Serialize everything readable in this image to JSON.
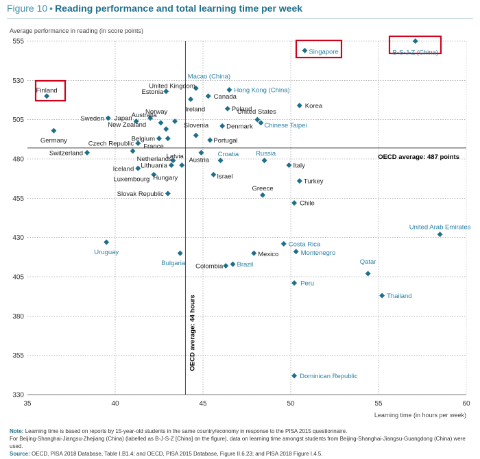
{
  "figure": {
    "label": "Figure 10",
    "title": "Reading performance and total learning time per week"
  },
  "notes": {
    "note_label": "Note:",
    "note_line1": "Learning time is based on reports by 15-year-old students in the same country/economy in response to the PISA 2015 questionnaire.",
    "note_line2": "For Beijing-Shanghai-Jiangsu-Zhejiang (China) (labelled as B-J-S-Z [China] on the figure), data on learning time amongst students from Beijing-Shanghai-Jiangsu-Guangdong (China) were used.",
    "source_label": "Source:",
    "source_text": "OECD, PISA 2018 Database, Table I.B1.4; and OECD, PISA 2015 Database, Figure II.6.23; and PISA 2018 Figure I.4.5."
  },
  "colors": {
    "marker": "#1f6f8b",
    "highlight_box": "#d0021b",
    "label_dark": "#222222",
    "label_blue": "#2a7fa3",
    "grid": "#555555"
  },
  "chart_data": {
    "type": "scatter",
    "title": "Reading performance and total learning time per week",
    "xlabel": "Learning time (in hours per week)",
    "ylabel": "Average performance in reading (in score points)",
    "xlim": [
      35,
      60
    ],
    "ylim": [
      330,
      555
    ],
    "x_ticks": [
      35,
      40,
      45,
      50,
      55,
      60
    ],
    "y_ticks": [
      330,
      355,
      380,
      405,
      430,
      455,
      480,
      505,
      530,
      555
    ],
    "grid": "dotted",
    "reference_lines": [
      {
        "axis": "y",
        "value": 487,
        "label": "OECD average: 487 points"
      },
      {
        "axis": "x",
        "value": 44,
        "label": "OECD average: 44 hours"
      }
    ],
    "points": [
      {
        "name": "Finland",
        "x": 36.1,
        "y": 520,
        "highlight": true,
        "color": "dark"
      },
      {
        "name": "Germany",
        "x": 36.5,
        "y": 498,
        "color": "dark"
      },
      {
        "name": "Sweden",
        "x": 39.6,
        "y": 506,
        "color": "dark"
      },
      {
        "name": "Switzerland",
        "x": 38.4,
        "y": 484,
        "color": "dark"
      },
      {
        "name": "Uruguay",
        "x": 39.5,
        "y": 427,
        "color": "blue"
      },
      {
        "name": "Netherlands",
        "x": 41,
        "y": 485,
        "color": "dark"
      },
      {
        "name": "Iceland",
        "x": 41.3,
        "y": 474,
        "color": "dark"
      },
      {
        "name": "Luxembourg",
        "x": 42.2,
        "y": 470,
        "color": "dark"
      },
      {
        "name": "Japan",
        "x": 41.2,
        "y": 504,
        "color": "dark"
      },
      {
        "name": "New Zealand",
        "x": 42,
        "y": 506,
        "color": "dark"
      },
      {
        "name": "Czech Republic",
        "x": 41.3,
        "y": 490,
        "color": "dark"
      },
      {
        "name": "Australia",
        "x": 42.6,
        "y": 503,
        "color": "dark"
      },
      {
        "name": "Belgium",
        "x": 42.5,
        "y": 493,
        "color": "dark"
      },
      {
        "name": "France",
        "x": 43,
        "y": 493,
        "color": "dark"
      },
      {
        "name": "Estonia",
        "x": 42.9,
        "y": 523,
        "color": "dark"
      },
      {
        "name": "Norway",
        "x": 42.9,
        "y": 499,
        "color": "dark"
      },
      {
        "name": "United Kingdom",
        "x": 43.4,
        "y": 504,
        "color": "dark"
      },
      {
        "name": "Latvia",
        "x": 43.3,
        "y": 479,
        "color": "dark"
      },
      {
        "name": "Lithuania",
        "x": 43.2,
        "y": 476,
        "color": "dark"
      },
      {
        "name": "Hungary",
        "x": 43.8,
        "y": 476,
        "color": "dark"
      },
      {
        "name": "Slovak Republic",
        "x": 43,
        "y": 458,
        "color": "dark"
      },
      {
        "name": "Bulgaria",
        "x": 43.7,
        "y": 420,
        "color": "blue"
      },
      {
        "name": "Macao (China)",
        "x": 44.6,
        "y": 525,
        "color": "blue"
      },
      {
        "name": "Ireland",
        "x": 44.3,
        "y": 518,
        "color": "dark"
      },
      {
        "name": "Canada",
        "x": 45.3,
        "y": 520,
        "color": "dark"
      },
      {
        "name": "Slovenia",
        "x": 44.6,
        "y": 495,
        "color": "dark"
      },
      {
        "name": "Austria",
        "x": 44.9,
        "y": 484,
        "color": "dark"
      },
      {
        "name": "Portugal",
        "x": 45.4,
        "y": 492,
        "color": "dark"
      },
      {
        "name": "Israel",
        "x": 45.6,
        "y": 470,
        "color": "dark"
      },
      {
        "name": "Croatia",
        "x": 46,
        "y": 479,
        "color": "blue"
      },
      {
        "name": "Denmark",
        "x": 46.1,
        "y": 501,
        "color": "dark"
      },
      {
        "name": "Poland",
        "x": 46.4,
        "y": 512,
        "color": "dark"
      },
      {
        "name": "Hong Kong (China)",
        "x": 46.5,
        "y": 524,
        "color": "blue"
      },
      {
        "name": "Colombia",
        "x": 46.3,
        "y": 412,
        "color": "dark"
      },
      {
        "name": "Brazil",
        "x": 46.7,
        "y": 413,
        "color": "blue"
      },
      {
        "name": "Mexico",
        "x": 47.9,
        "y": 420,
        "color": "dark"
      },
      {
        "name": "United States",
        "x": 48.1,
        "y": 505,
        "color": "dark"
      },
      {
        "name": "Chinese Taipei",
        "x": 48.3,
        "y": 503,
        "color": "blue"
      },
      {
        "name": "Russia",
        "x": 48.5,
        "y": 479,
        "color": "blue"
      },
      {
        "name": "Greece",
        "x": 48.4,
        "y": 457,
        "color": "dark"
      },
      {
        "name": "Costa Rica",
        "x": 49.6,
        "y": 426,
        "color": "blue"
      },
      {
        "name": "Italy",
        "x": 49.9,
        "y": 476,
        "color": "dark"
      },
      {
        "name": "Singapore",
        "x": 50.8,
        "y": 549,
        "highlight": true,
        "color": "blue"
      },
      {
        "name": "Korea",
        "x": 50.5,
        "y": 514,
        "color": "dark"
      },
      {
        "name": "Turkey",
        "x": 50.5,
        "y": 466,
        "color": "dark"
      },
      {
        "name": "Chile",
        "x": 50.2,
        "y": 452,
        "color": "dark"
      },
      {
        "name": "Montenegro",
        "x": 50.3,
        "y": 421,
        "color": "blue"
      },
      {
        "name": "Peru",
        "x": 50.2,
        "y": 401,
        "color": "blue"
      },
      {
        "name": "Dominican Republic",
        "x": 50.2,
        "y": 342,
        "color": "blue"
      },
      {
        "name": "Qatar",
        "x": 54.4,
        "y": 407,
        "color": "blue"
      },
      {
        "name": "Thailand",
        "x": 55.2,
        "y": 393,
        "color": "blue"
      },
      {
        "name": "United Arab Emirates",
        "x": 58.5,
        "y": 432,
        "color": "blue"
      },
      {
        "name": "B-S-J-Z (China)",
        "x": 57.1,
        "y": 555,
        "highlight": true,
        "color": "blue"
      }
    ]
  }
}
